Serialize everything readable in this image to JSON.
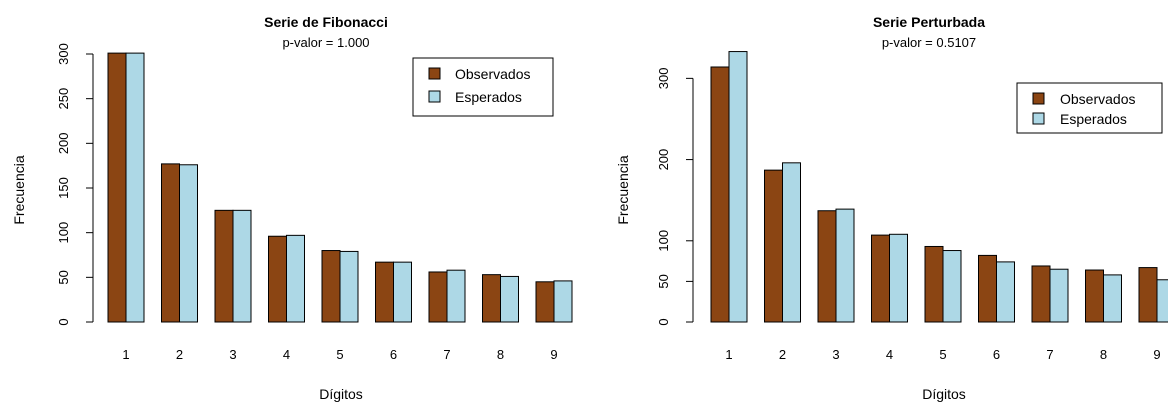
{
  "chart_data": [
    {
      "type": "bar",
      "title": "Serie de Fibonacci",
      "subtitle": "p-valor = 1.000",
      "xlabel": "Dígitos",
      "ylabel": "Frecuencia",
      "categories": [
        "1",
        "2",
        "3",
        "4",
        "5",
        "6",
        "7",
        "8",
        "9"
      ],
      "ylim": [
        0,
        300
      ],
      "yticks": [
        "0",
        "50",
        "100",
        "150",
        "200",
        "250",
        "300"
      ],
      "series": [
        {
          "name": "Observados",
          "color": "#8B4513",
          "values": [
            301,
            177,
            125,
            96,
            80,
            67,
            56,
            53,
            45
          ]
        },
        {
          "name": "Esperados",
          "color": "#ADD8E6",
          "values": [
            301,
            176,
            125,
            97,
            79,
            67,
            58,
            51,
            46
          ]
        }
      ],
      "legend": "top-right",
      "grid": false
    },
    {
      "type": "bar",
      "title": "Serie Perturbada",
      "subtitle": "p-valor = 0.5107",
      "xlabel": "Dígitos",
      "ylabel": "Frecuencia",
      "categories": [
        "1",
        "2",
        "3",
        "4",
        "5",
        "6",
        "7",
        "8",
        "9"
      ],
      "ylim": [
        0,
        330
      ],
      "yticks": [
        "0",
        "50",
        "100",
        "200",
        "300"
      ],
      "series": [
        {
          "name": "Observados",
          "color": "#8B4513",
          "values": [
            314,
            187,
            137,
            107,
            93,
            82,
            69,
            64,
            67
          ]
        },
        {
          "name": "Esperados",
          "color": "#ADD8E6",
          "values": [
            333,
            196,
            139,
            108,
            88,
            74,
            65,
            58,
            52
          ]
        }
      ],
      "legend": "top-right",
      "grid": false
    }
  ]
}
